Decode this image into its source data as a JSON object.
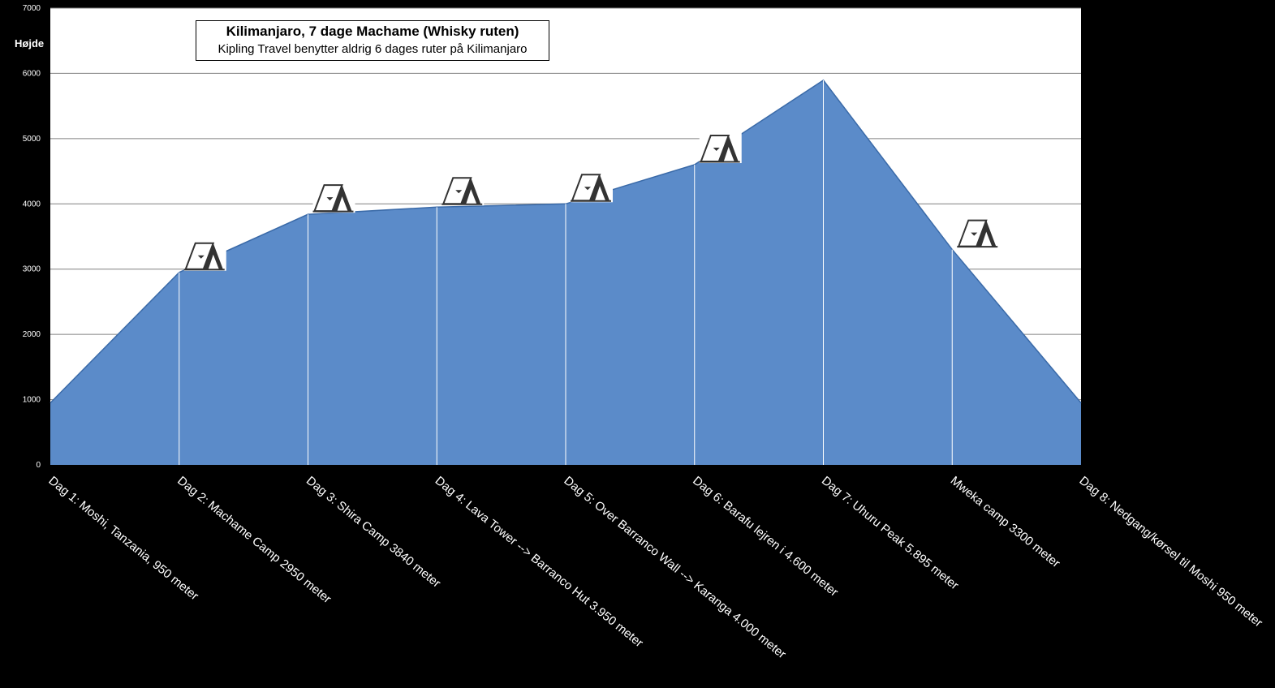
{
  "chart_data": {
    "type": "area",
    "title": "Kilimanjaro, 7 dage Machame (Whisky ruten)",
    "subtitle": "Kipling Travel benytter aldrig 6 dages ruter på Kilimanjaro",
    "ylabel": "Højde",
    "xlabel": "",
    "ylim": [
      0,
      7000
    ],
    "yticks": [
      "0",
      "1000",
      "2000",
      "3000",
      "4000",
      "5000",
      "6000",
      "7000"
    ],
    "grid": true,
    "categories": [
      "Dag 1: Moshi, Tanzania, 950 meter",
      "Dag 2: Machame Camp 2950 meter",
      "Dag 3: Shira Camp 3840 meter",
      "Dag 4: Lava Tower --> Barranco Hut 3.950 meter",
      "Dag 5: Over Barranco Wall --> Karanga 4.000 meter",
      "Dag 6: Barafu lejren i 4.600 meter",
      "Dag 7: Uhuru Peak 5.895 meter",
      "Mweka camp 3300 meter",
      "Dag 8: Nedgang/kørsel til Moshi  950 meter"
    ],
    "values": [
      950,
      2950,
      3840,
      3950,
      4000,
      4600,
      5895,
      3300,
      950
    ],
    "tent_markers": [
      "Dag 2: Machame Camp 2950 meter",
      "Dag 3: Shira Camp 3840 meter",
      "Dag 4: Lava Tower --> Barranco Hut 3.950 meter",
      "Dag 5: Over Barranco Wall --> Karanga 4.000 meter",
      "Dag 6: Barafu lejren i 4.600 meter",
      "Mweka camp 3300 meter"
    ],
    "colors": {
      "area": "#5B8BC9",
      "background": "#000000",
      "plot": "#FFFFFF",
      "grid": "#808080"
    }
  }
}
